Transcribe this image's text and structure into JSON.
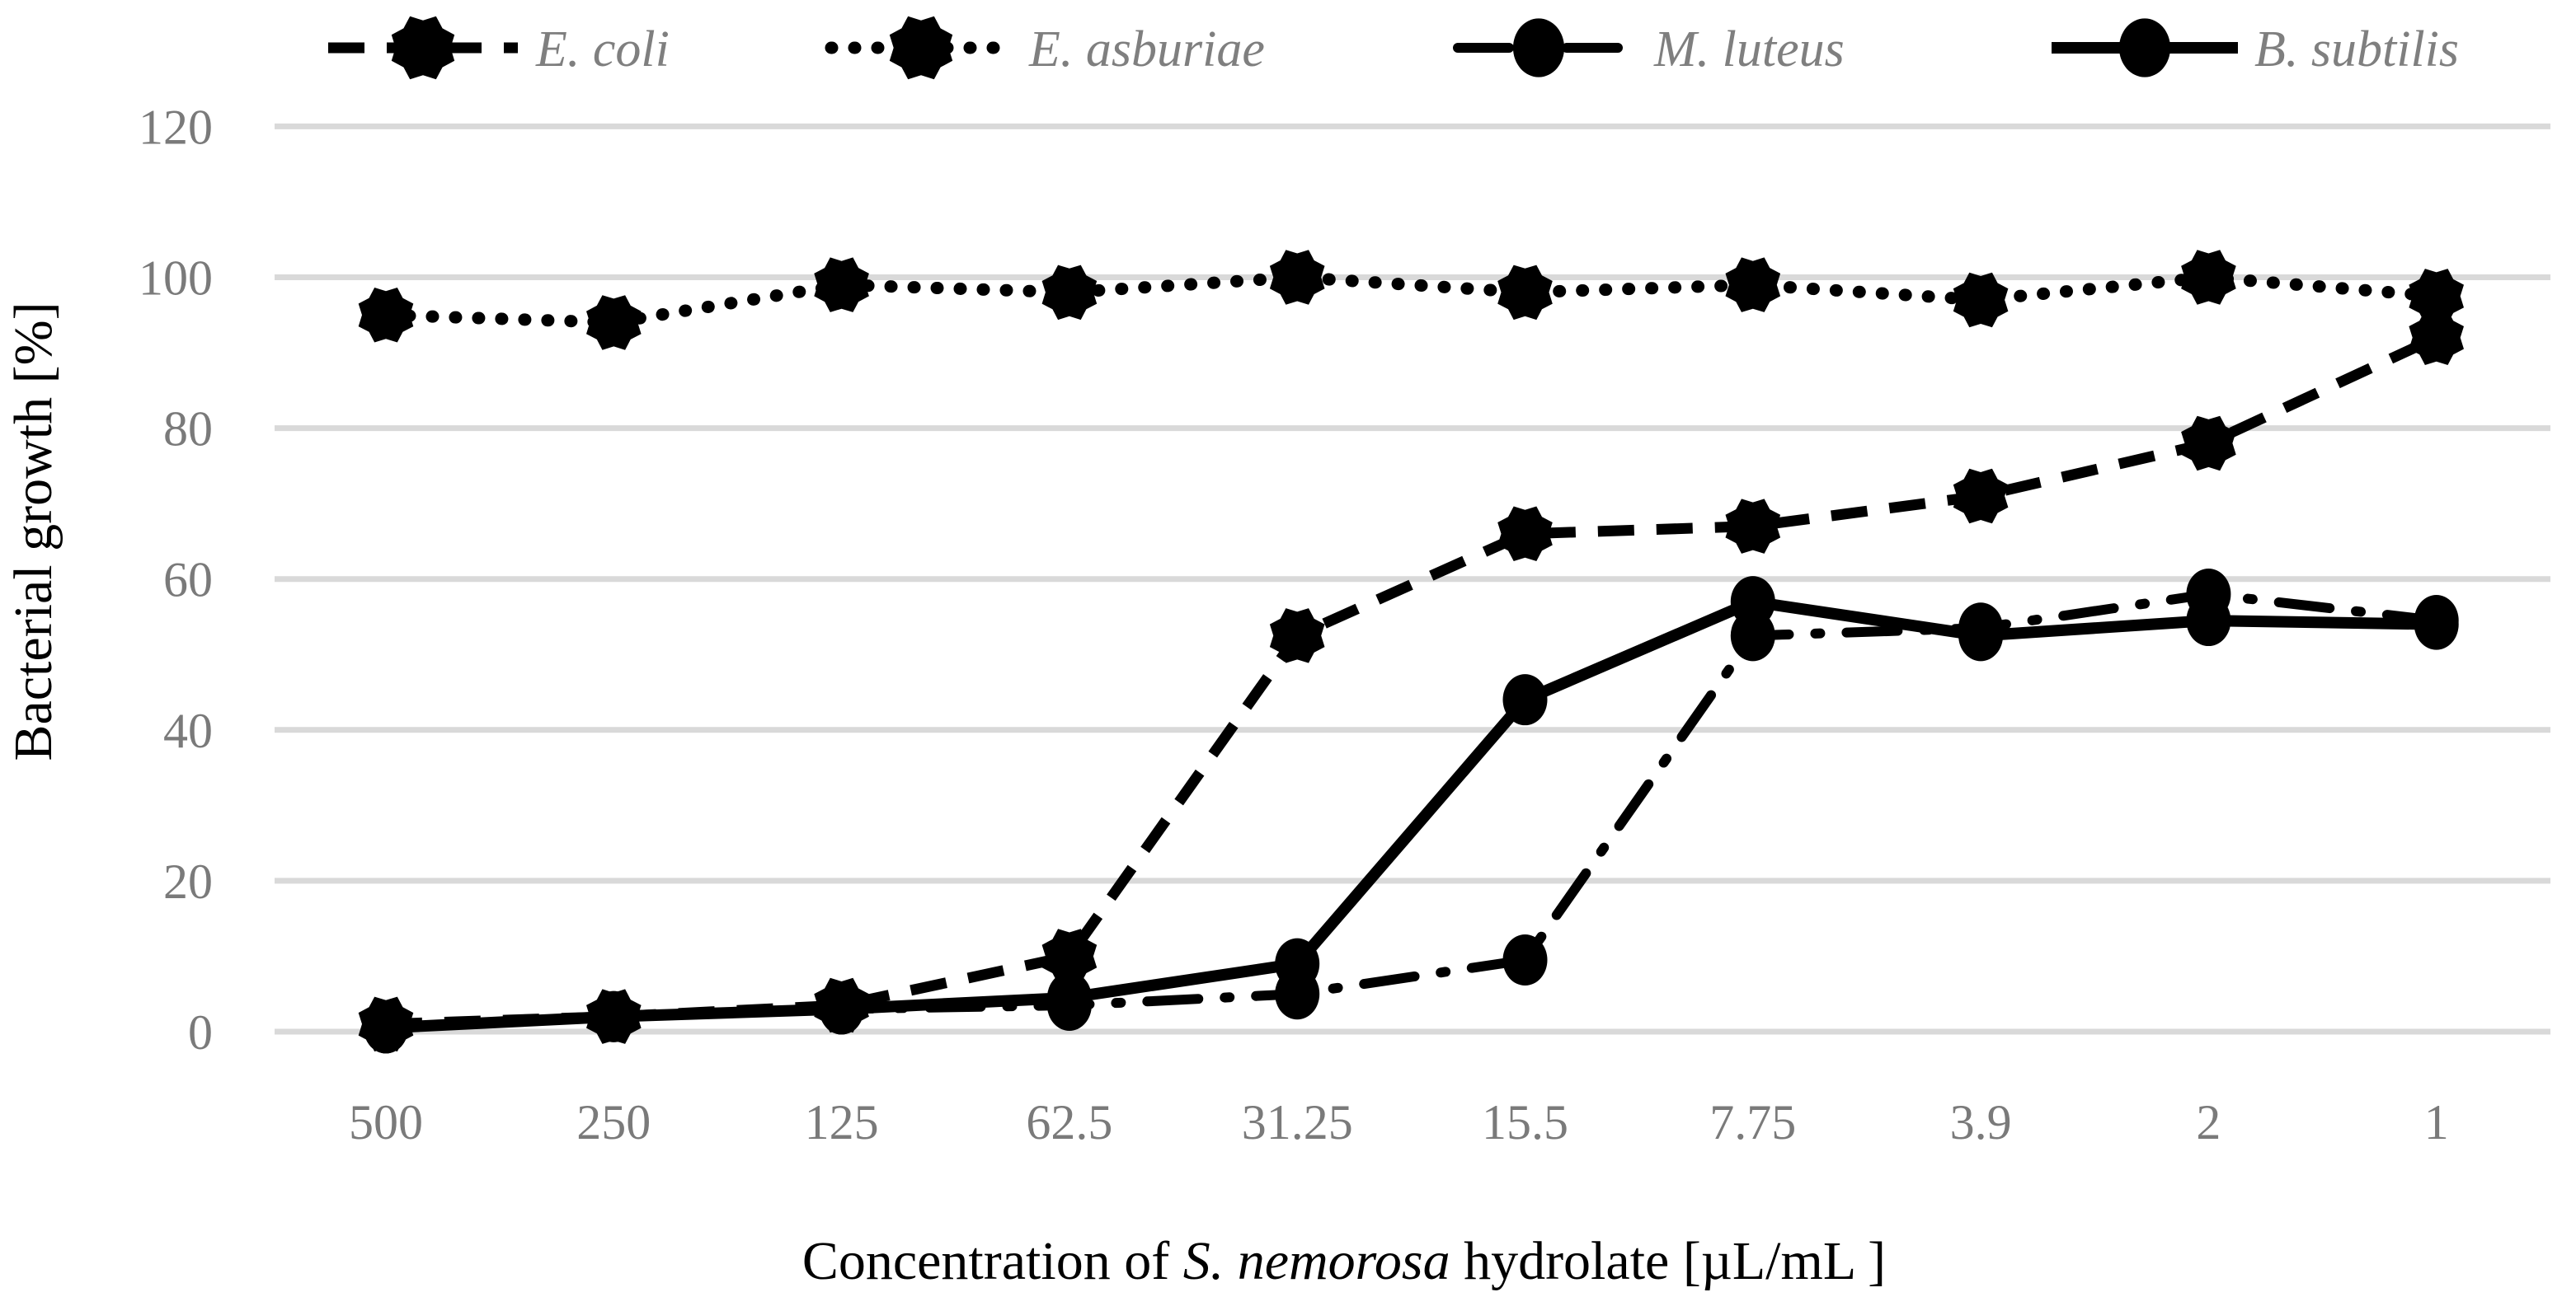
{
  "chart_data": {
    "type": "line",
    "title": "",
    "xlabel_prefix": "Concentration of ",
    "xlabel_italic": "S. nemorosa",
    "xlabel_suffix": " hydrolate [µL/mL ]",
    "ylabel": "Bacterial growth [%]",
    "categories": [
      "500",
      "250",
      "125",
      "62.5",
      "31.25",
      "15.5",
      "7.75",
      "3.9",
      "2",
      "1"
    ],
    "ylim": [
      0,
      120
    ],
    "yticks": [
      0,
      20,
      40,
      60,
      80,
      100,
      120
    ],
    "grid": "horizontal",
    "legend_position": "top",
    "series": [
      {
        "name": "E. coli",
        "line_style": "dashed",
        "marker": "scribble-circle",
        "values": [
          1,
          2,
          3.5,
          10,
          52.5,
          66,
          67,
          71,
          78,
          92
        ]
      },
      {
        "name": "E. asburiae",
        "line_style": "dotted",
        "marker": "scribble-circle",
        "values": [
          95,
          94,
          99,
          98,
          100,
          98,
          99,
          97,
          100,
          97.5
        ]
      },
      {
        "name": "M. luteus",
        "line_style": "dash-dot",
        "marker": "circle",
        "values": [
          0.5,
          2,
          3,
          3.5,
          5,
          9.5,
          52.5,
          53.5,
          58,
          54.5
        ]
      },
      {
        "name": "B. subtilis",
        "line_style": "solid",
        "marker": "circle",
        "values": [
          0.5,
          2,
          3,
          4.5,
          9,
          44,
          57,
          52.5,
          54.5,
          54
        ]
      }
    ],
    "colors": {
      "series": "#000000",
      "grid": "#d9d9d9",
      "tick_label": "#7a7a7a",
      "legend_text": "#7f7f7f",
      "axis_title": "#000000"
    }
  }
}
